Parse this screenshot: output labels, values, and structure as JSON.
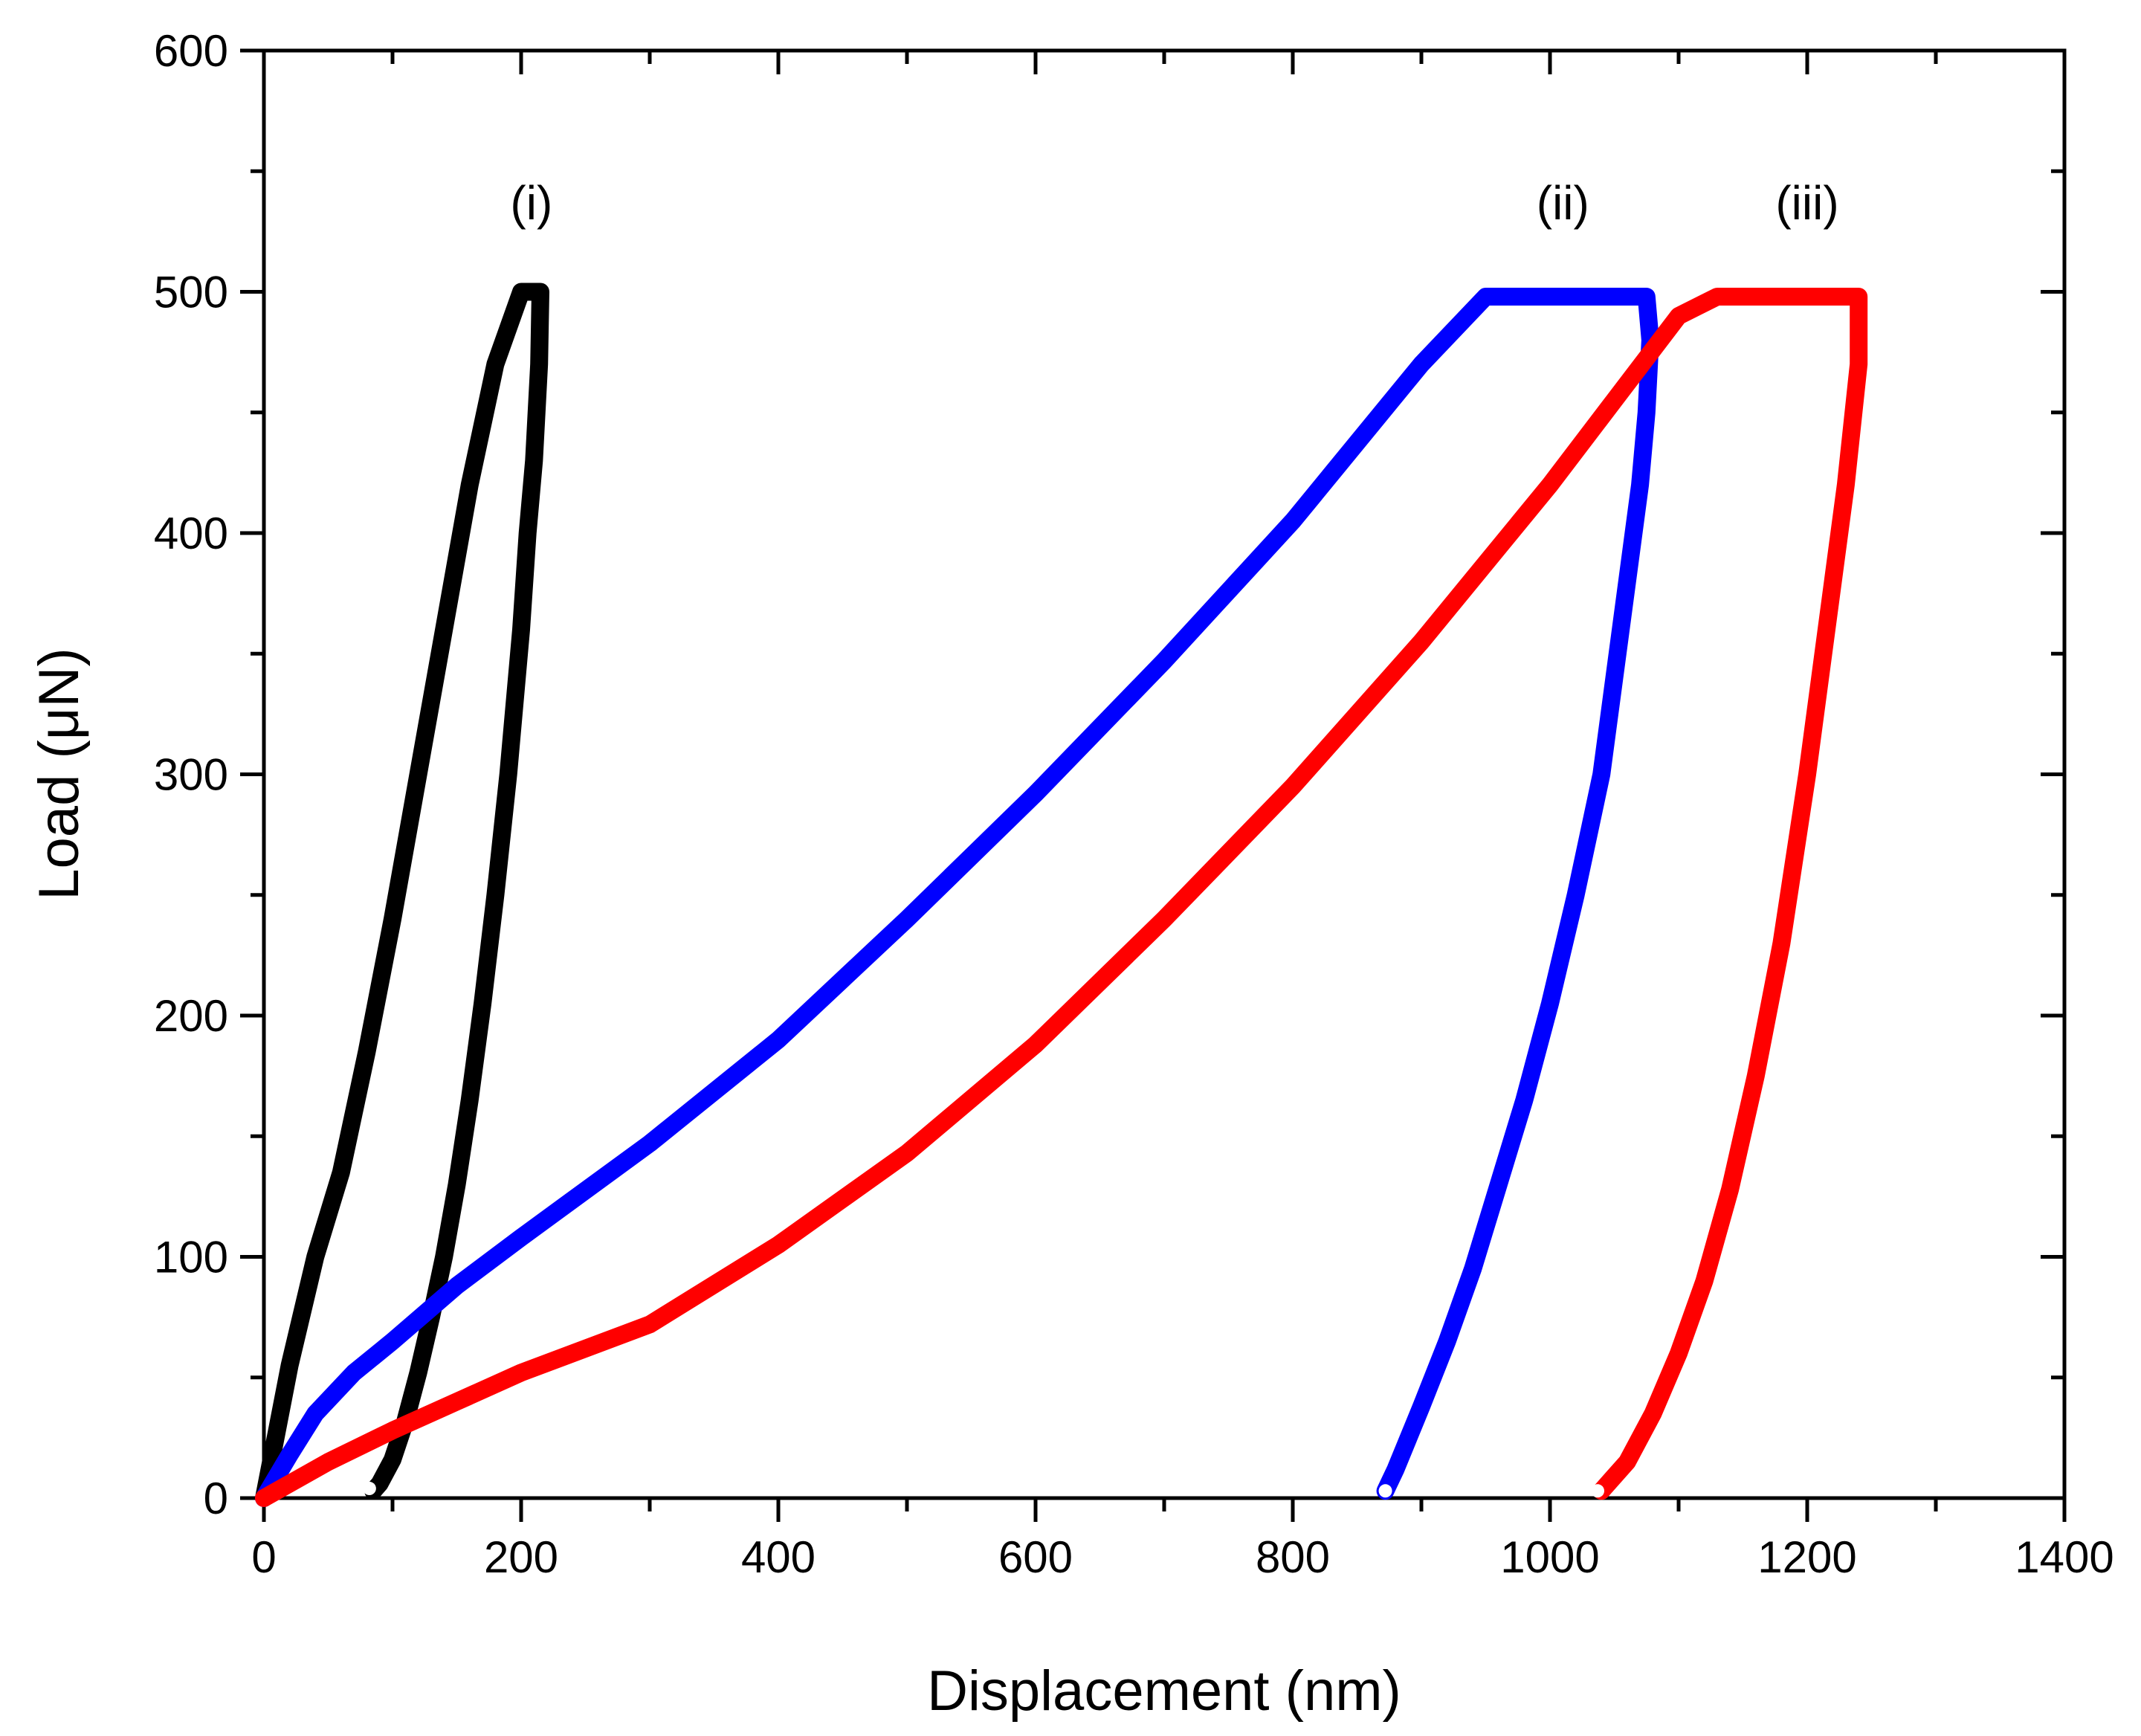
{
  "chart_data": {
    "type": "line",
    "title": "",
    "xlabel": "Displacement (nm)",
    "ylabel": "Load (μN)",
    "xlim": [
      0,
      1400
    ],
    "ylim": [
      0,
      600
    ],
    "xticks": [
      0,
      200,
      400,
      600,
      800,
      1000,
      1200,
      1400
    ],
    "yticks": [
      0,
      100,
      200,
      300,
      400,
      500,
      600
    ],
    "grid": false,
    "legend": "none",
    "series": [
      {
        "name": "(i)",
        "color": "#000000",
        "label_at": [
          208,
          530
        ],
        "x": [
          0,
          20,
          40,
          60,
          80,
          100,
          120,
          140,
          160,
          180,
          200,
          210,
          215,
          214,
          210,
          205,
          200,
          190,
          180,
          170,
          160,
          150,
          140,
          130,
          120,
          110,
          100,
          90,
          85
        ],
        "y": [
          0,
          55,
          100,
          135,
          185,
          240,
          300,
          360,
          420,
          470,
          500,
          500,
          500,
          470,
          430,
          400,
          360,
          300,
          250,
          205,
          165,
          130,
          100,
          75,
          52,
          32,
          16,
          6,
          3
        ]
      },
      {
        "name": "(ii)",
        "color": "#0000ff",
        "label_at": [
          1010,
          530
        ],
        "x": [
          0,
          20,
          40,
          70,
          100,
          150,
          200,
          300,
          400,
          500,
          600,
          700,
          800,
          900,
          950,
          1000,
          1050,
          1075,
          1078,
          1075,
          1070,
          1060,
          1050,
          1040,
          1020,
          1000,
          980,
          960,
          940,
          920,
          900,
          880,
          872
        ],
        "y": [
          0,
          18,
          35,
          52,
          65,
          88,
          108,
          147,
          190,
          240,
          292,
          347,
          405,
          470,
          498,
          498,
          498,
          498,
          480,
          450,
          420,
          380,
          340,
          300,
          250,
          205,
          165,
          130,
          95,
          65,
          38,
          12,
          3
        ]
      },
      {
        "name": "(iii)",
        "color": "#ff0000",
        "label_at": [
          1200,
          530
        ],
        "x": [
          0,
          50,
          100,
          150,
          200,
          300,
          400,
          500,
          600,
          700,
          800,
          900,
          1000,
          1050,
          1100,
          1130,
          1150,
          1200,
          1240,
          1240,
          1230,
          1220,
          1210,
          1200,
          1180,
          1160,
          1140,
          1120,
          1100,
          1080,
          1060,
          1040
        ],
        "y": [
          0,
          15,
          28,
          40,
          52,
          72,
          105,
          143,
          188,
          240,
          295,
          355,
          420,
          455,
          490,
          498,
          498,
          498,
          498,
          470,
          420,
          380,
          340,
          300,
          230,
          175,
          128,
          90,
          60,
          35,
          15,
          3
        ]
      }
    ],
    "endpoint_markers": [
      {
        "series": "(i)",
        "x": 82,
        "y": 4
      },
      {
        "series": "(ii)",
        "x": 872,
        "y": 3
      },
      {
        "series": "(iii)",
        "x": 1037,
        "y": 3
      }
    ]
  }
}
